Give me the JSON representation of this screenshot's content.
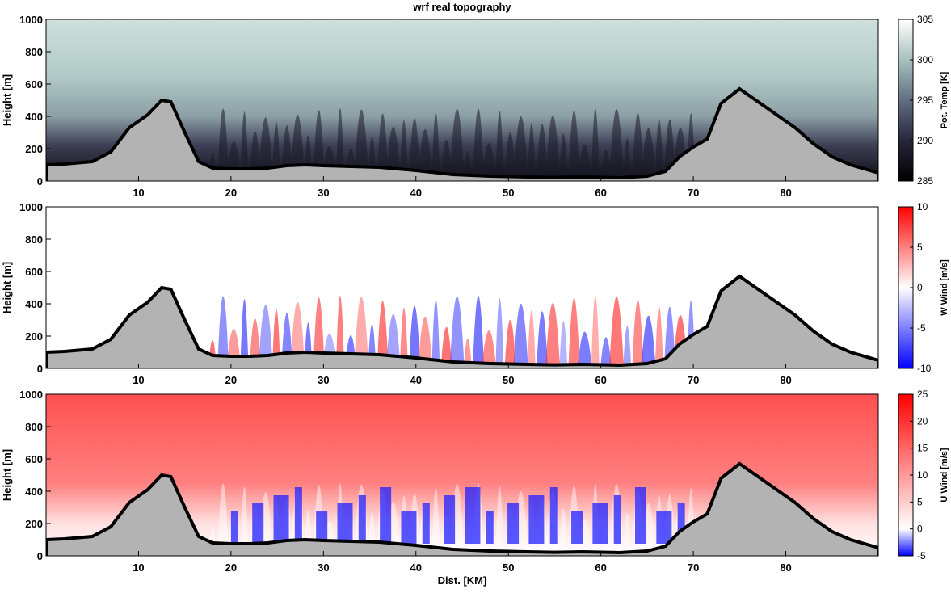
{
  "chart_data": [
    {
      "type": "heatmap",
      "title": "wrf real topography",
      "ylabel": "Height [m]",
      "xlabel": "",
      "xlim": [
        0,
        90
      ],
      "ylim": [
        0,
        1000
      ],
      "x_ticks": [
        10,
        20,
        30,
        40,
        50,
        60,
        70,
        80
      ],
      "y_ticks": [
        0,
        200,
        400,
        600,
        800,
        1000
      ],
      "colorbar": {
        "label": "Pot. Temp [K]",
        "range": [
          285,
          305
        ],
        "ticks": [
          285,
          290,
          295,
          300,
          305
        ],
        "colormap": "bone"
      },
      "terrain": {
        "x": [
          0,
          2,
          5,
          7,
          9,
          11,
          12.5,
          13.5,
          15,
          16.5,
          18,
          20,
          22,
          24,
          26,
          28,
          30,
          33,
          36,
          40,
          44,
          48,
          52,
          55,
          58,
          62,
          65,
          67,
          68.5,
          70,
          71.5,
          73,
          75,
          77,
          79,
          81,
          83,
          85,
          87,
          90
        ],
        "y": [
          100,
          105,
          120,
          180,
          330,
          410,
          500,
          490,
          300,
          120,
          80,
          75,
          75,
          80,
          95,
          100,
          95,
          90,
          85,
          65,
          40,
          30,
          25,
          22,
          25,
          20,
          30,
          60,
          150,
          210,
          260,
          480,
          570,
          490,
          410,
          330,
          230,
          150,
          100,
          50
        ]
      }
    },
    {
      "type": "heatmap",
      "title": "",
      "ylabel": "Height [m]",
      "xlabel": "",
      "xlim": [
        0,
        90
      ],
      "ylim": [
        0,
        1000
      ],
      "x_ticks": [
        10,
        20,
        30,
        40,
        50,
        60,
        70,
        80
      ],
      "y_ticks": [
        0,
        200,
        400,
        600,
        800,
        1000
      ],
      "colorbar": {
        "label": "W Wind [m/s]",
        "range": [
          -10,
          10
        ],
        "ticks": [
          -10,
          -5,
          0,
          5,
          10
        ],
        "colormap": "blue-white-red"
      }
    },
    {
      "type": "heatmap",
      "title": "",
      "ylabel": "Height [m]",
      "xlabel": "Dist. [KM]",
      "xlim": [
        0,
        90
      ],
      "ylim": [
        0,
        1000
      ],
      "x_ticks": [
        10,
        20,
        30,
        40,
        50,
        60,
        70,
        80
      ],
      "y_ticks": [
        0,
        200,
        400,
        600,
        800,
        1000
      ],
      "colorbar": {
        "label": "U Wind [m/s]",
        "range": [
          -5,
          25
        ],
        "ticks": [
          -5,
          0,
          5,
          10,
          15,
          20,
          25
        ],
        "colormap": "blue-white-red"
      }
    }
  ],
  "colors": {
    "terrain_fill": "#b3b3b3",
    "terrain_line": "#000000",
    "theta_high": "#b6cdca",
    "theta_low": "#101018",
    "wind_pos": "#ff1a1a",
    "wind_neg": "#1a1aff"
  }
}
